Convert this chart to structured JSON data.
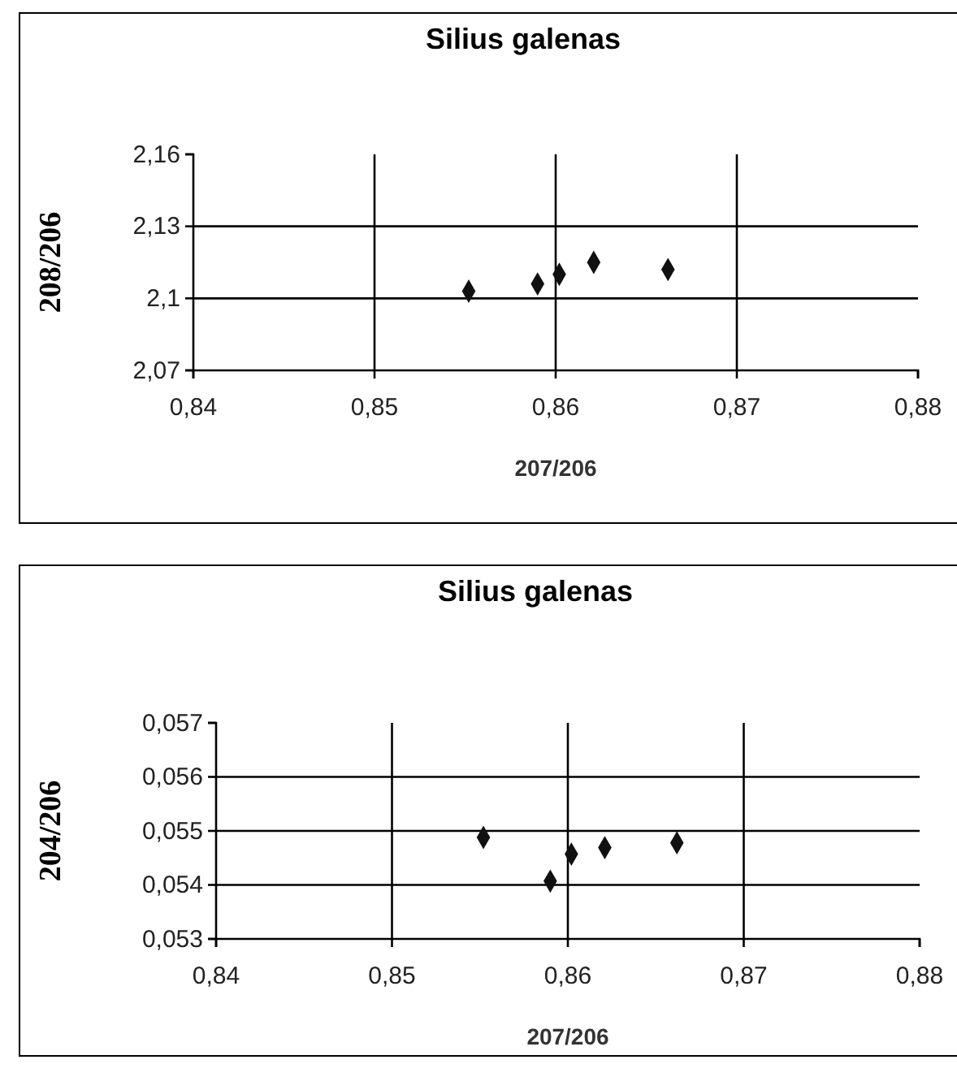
{
  "chart_data": [
    {
      "type": "scatter",
      "title": "Silius galenas",
      "xlabel": "207/206",
      "ylabel": "208/206",
      "x": [
        0.8552,
        0.859,
        0.8602,
        0.8621,
        0.8662
      ],
      "series": [
        {
          "color": "#111111",
          "values": [
            2.103,
            2.106,
            2.11,
            2.115,
            2.112
          ]
        }
      ],
      "xlim": [
        0.84,
        0.88
      ],
      "xticks": [
        {
          "value": 0.84,
          "label": "0,84"
        },
        {
          "value": 0.85,
          "label": "0,85"
        },
        {
          "value": 0.86,
          "label": "0,86"
        },
        {
          "value": 0.87,
          "label": "0,87"
        },
        {
          "value": 0.88,
          "label": "0,88"
        }
      ],
      "ylim": [
        2.07,
        2.16
      ],
      "yticks": [
        {
          "value": 2.07,
          "label": "2,07"
        },
        {
          "value": 2.1,
          "label": "2,1"
        },
        {
          "value": 2.13,
          "label": "2,13"
        },
        {
          "value": 2.16,
          "label": "2,16"
        }
      ],
      "grid": true,
      "marker": "diamond"
    },
    {
      "type": "scatter",
      "title": "Silius galenas",
      "xlabel": "207/206",
      "ylabel": "204/206",
      "x": [
        0.8552,
        0.859,
        0.8602,
        0.8621,
        0.8662
      ],
      "series": [
        {
          "color": "#111111",
          "values": [
            0.05488,
            0.05407,
            0.05457,
            0.05469,
            0.05478
          ]
        }
      ],
      "xlim": [
        0.84,
        0.88
      ],
      "xticks": [
        {
          "value": 0.84,
          "label": "0,84"
        },
        {
          "value": 0.85,
          "label": "0,85"
        },
        {
          "value": 0.86,
          "label": "0,86"
        },
        {
          "value": 0.87,
          "label": "0,87"
        },
        {
          "value": 0.88,
          "label": "0,88"
        }
      ],
      "ylim": [
        0.053,
        0.057
      ],
      "yticks": [
        {
          "value": 0.053,
          "label": "0,053"
        },
        {
          "value": 0.054,
          "label": "0,054"
        },
        {
          "value": 0.055,
          "label": "0,055"
        },
        {
          "value": 0.056,
          "label": "0,056"
        },
        {
          "value": 0.057,
          "label": "0,057"
        }
      ],
      "grid": true,
      "marker": "diamond"
    }
  ]
}
